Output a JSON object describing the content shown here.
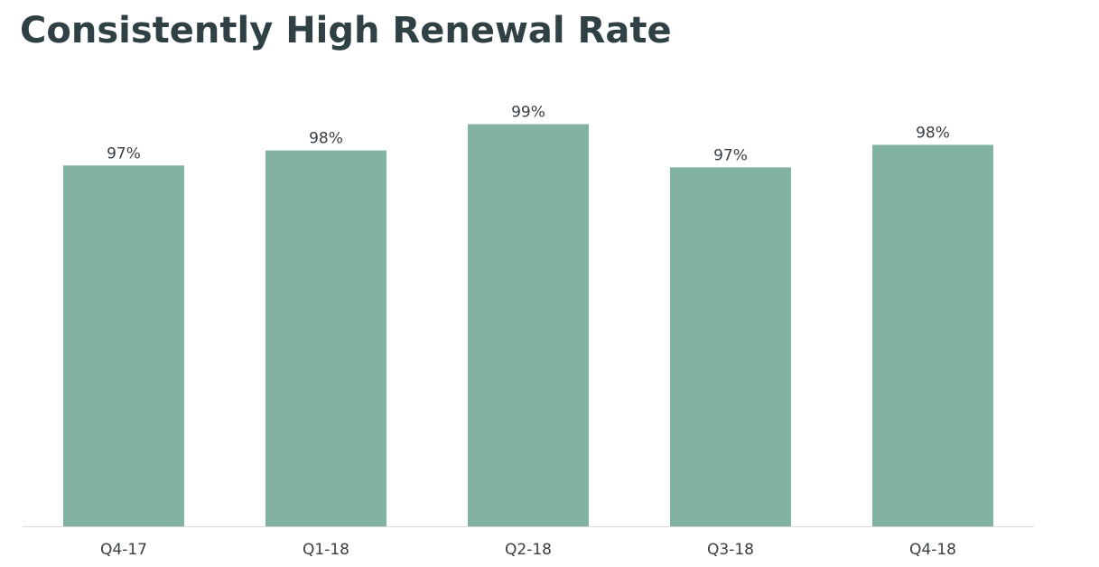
{
  "chart_data": {
    "type": "bar",
    "title": "Consistently High Renewal Rate",
    "categories": [
      "Q4-17",
      "Q1-18",
      "Q2-18",
      "Q3-18",
      "Q4-18"
    ],
    "values": [
      97.2,
      98.0,
      99.4,
      97.1,
      98.3
    ],
    "data_labels": [
      "97%",
      "98%",
      "99%",
      "97%",
      "98%"
    ],
    "ylim": [
      78,
      100
    ],
    "grid": false,
    "legend": "none",
    "colors": {
      "bar": "#82b3a0",
      "axis": "#d9d9d9",
      "title": "#2f4145",
      "text": "#3a3f44"
    }
  }
}
